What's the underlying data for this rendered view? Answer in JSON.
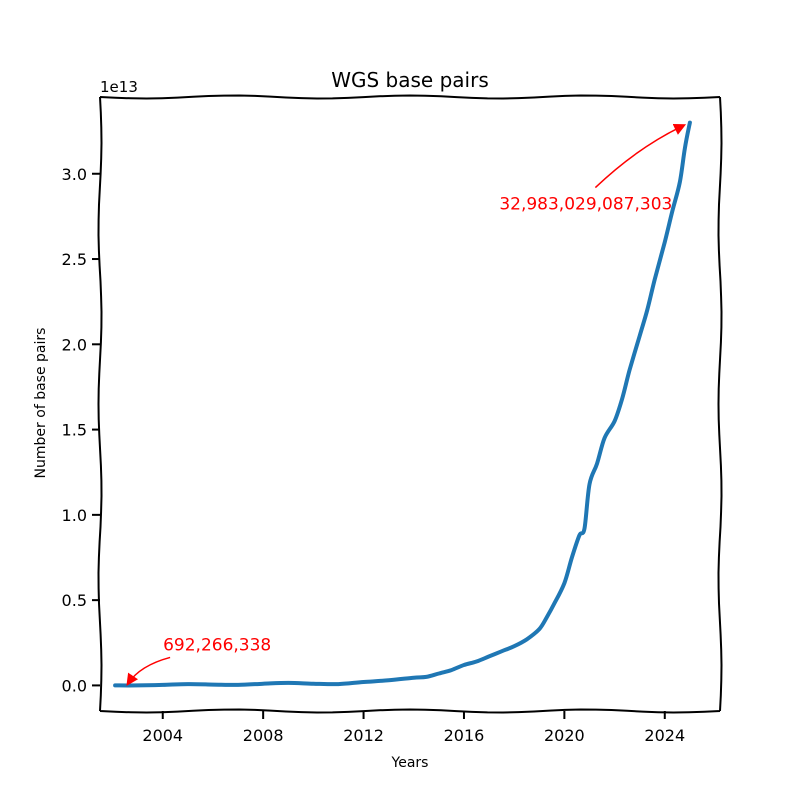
{
  "chart_data": {
    "type": "line",
    "title": "WGS base pairs",
    "xlabel": "Years",
    "ylabel": "Number of base pairs",
    "y_offset_label": "1e13",
    "xlim": [
      2001.5,
      2026.2
    ],
    "ylim": [
      -0.15,
      3.45
    ],
    "x_ticks": [
      2004,
      2008,
      2012,
      2016,
      2020,
      2024
    ],
    "x_tick_labels": [
      "2004",
      "2008",
      "2012",
      "2016",
      "2020",
      "2024"
    ],
    "y_ticks": [
      0.0,
      0.5,
      1.0,
      1.5,
      2.0,
      2.5,
      3.0
    ],
    "y_tick_labels": [
      "0.0",
      "0.5",
      "1.0",
      "1.5",
      "2.0",
      "2.5",
      "3.0"
    ],
    "line_color": "#1f77b4",
    "annotation_color": "#ff0000",
    "grid": false,
    "series": [
      {
        "x": [
          2002.1,
          2003.0,
          2004.0,
          2005.0,
          2006.0,
          2007.0,
          2008.0,
          2009.0,
          2010.0,
          2011.0,
          2012.0,
          2013.0,
          2014.0,
          2014.5,
          2015.0,
          2015.5,
          2016.0,
          2016.5,
          2017.0,
          2017.5,
          2018.0,
          2018.5,
          2019.0,
          2019.3,
          2019.6,
          2020.0,
          2020.3,
          2020.6,
          2020.8,
          2021.0,
          2021.3,
          2021.6,
          2022.0,
          2022.3,
          2022.6,
          2023.0,
          2023.3,
          2023.6,
          2024.0,
          2024.3,
          2024.6,
          2024.8,
          2025.0
        ],
        "y": [
          0.0,
          0.0,
          0.003,
          0.008,
          0.005,
          0.003,
          0.01,
          0.015,
          0.01,
          0.008,
          0.02,
          0.03,
          0.045,
          0.05,
          0.07,
          0.09,
          0.12,
          0.14,
          0.17,
          0.2,
          0.23,
          0.27,
          0.33,
          0.4,
          0.48,
          0.6,
          0.75,
          0.88,
          0.92,
          1.18,
          1.3,
          1.45,
          1.55,
          1.68,
          1.85,
          2.05,
          2.2,
          2.38,
          2.6,
          2.78,
          2.95,
          3.15,
          3.3
        ]
      }
    ],
    "annotations": [
      {
        "text": "692,266,338",
        "x": 2002.5,
        "y": 0.0
      },
      {
        "text": "32,983,029,087,303",
        "x": 2024.9,
        "y": 3.3
      }
    ]
  }
}
